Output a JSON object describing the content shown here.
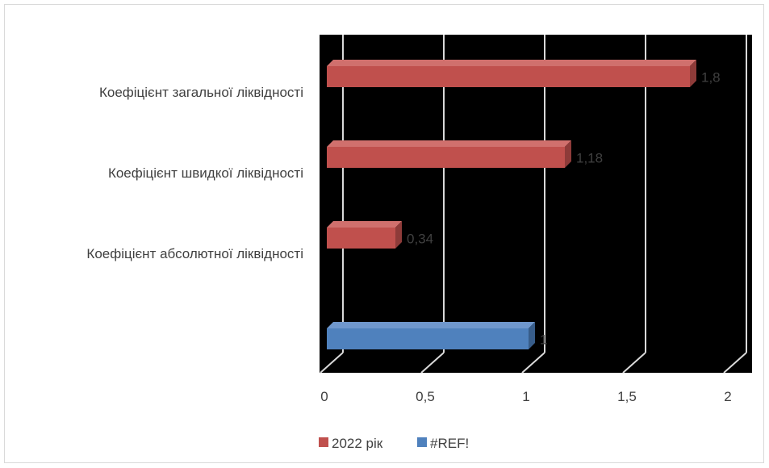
{
  "chart_data": {
    "type": "bar",
    "orientation": "horizontal",
    "categories": [
      "Коефіцієнт загальної ліквідності",
      "Коефіцієнт швидкої ліквідності",
      "Коефіцієнт абсолютної ліквідності",
      ""
    ],
    "series": [
      {
        "name": "2022 рік",
        "color": "#c0504d",
        "values": [
          1.8,
          1.18,
          0.34,
          null
        ],
        "labels": [
          "1,8",
          "1,18",
          "0,34",
          ""
        ]
      },
      {
        "name": "#REF!",
        "color": "#4f81bd",
        "values": [
          null,
          null,
          null,
          1
        ],
        "labels": [
          "",
          "",
          "",
          "1"
        ]
      }
    ],
    "xlim": [
      0,
      2
    ],
    "ticks": [
      0,
      0.5,
      1,
      1.5,
      2
    ],
    "tick_labels": [
      "0",
      "0,5",
      "1",
      "1,5",
      "2"
    ],
    "plot_background": "#000000",
    "gridlines": true,
    "legend_position": "bottom"
  }
}
